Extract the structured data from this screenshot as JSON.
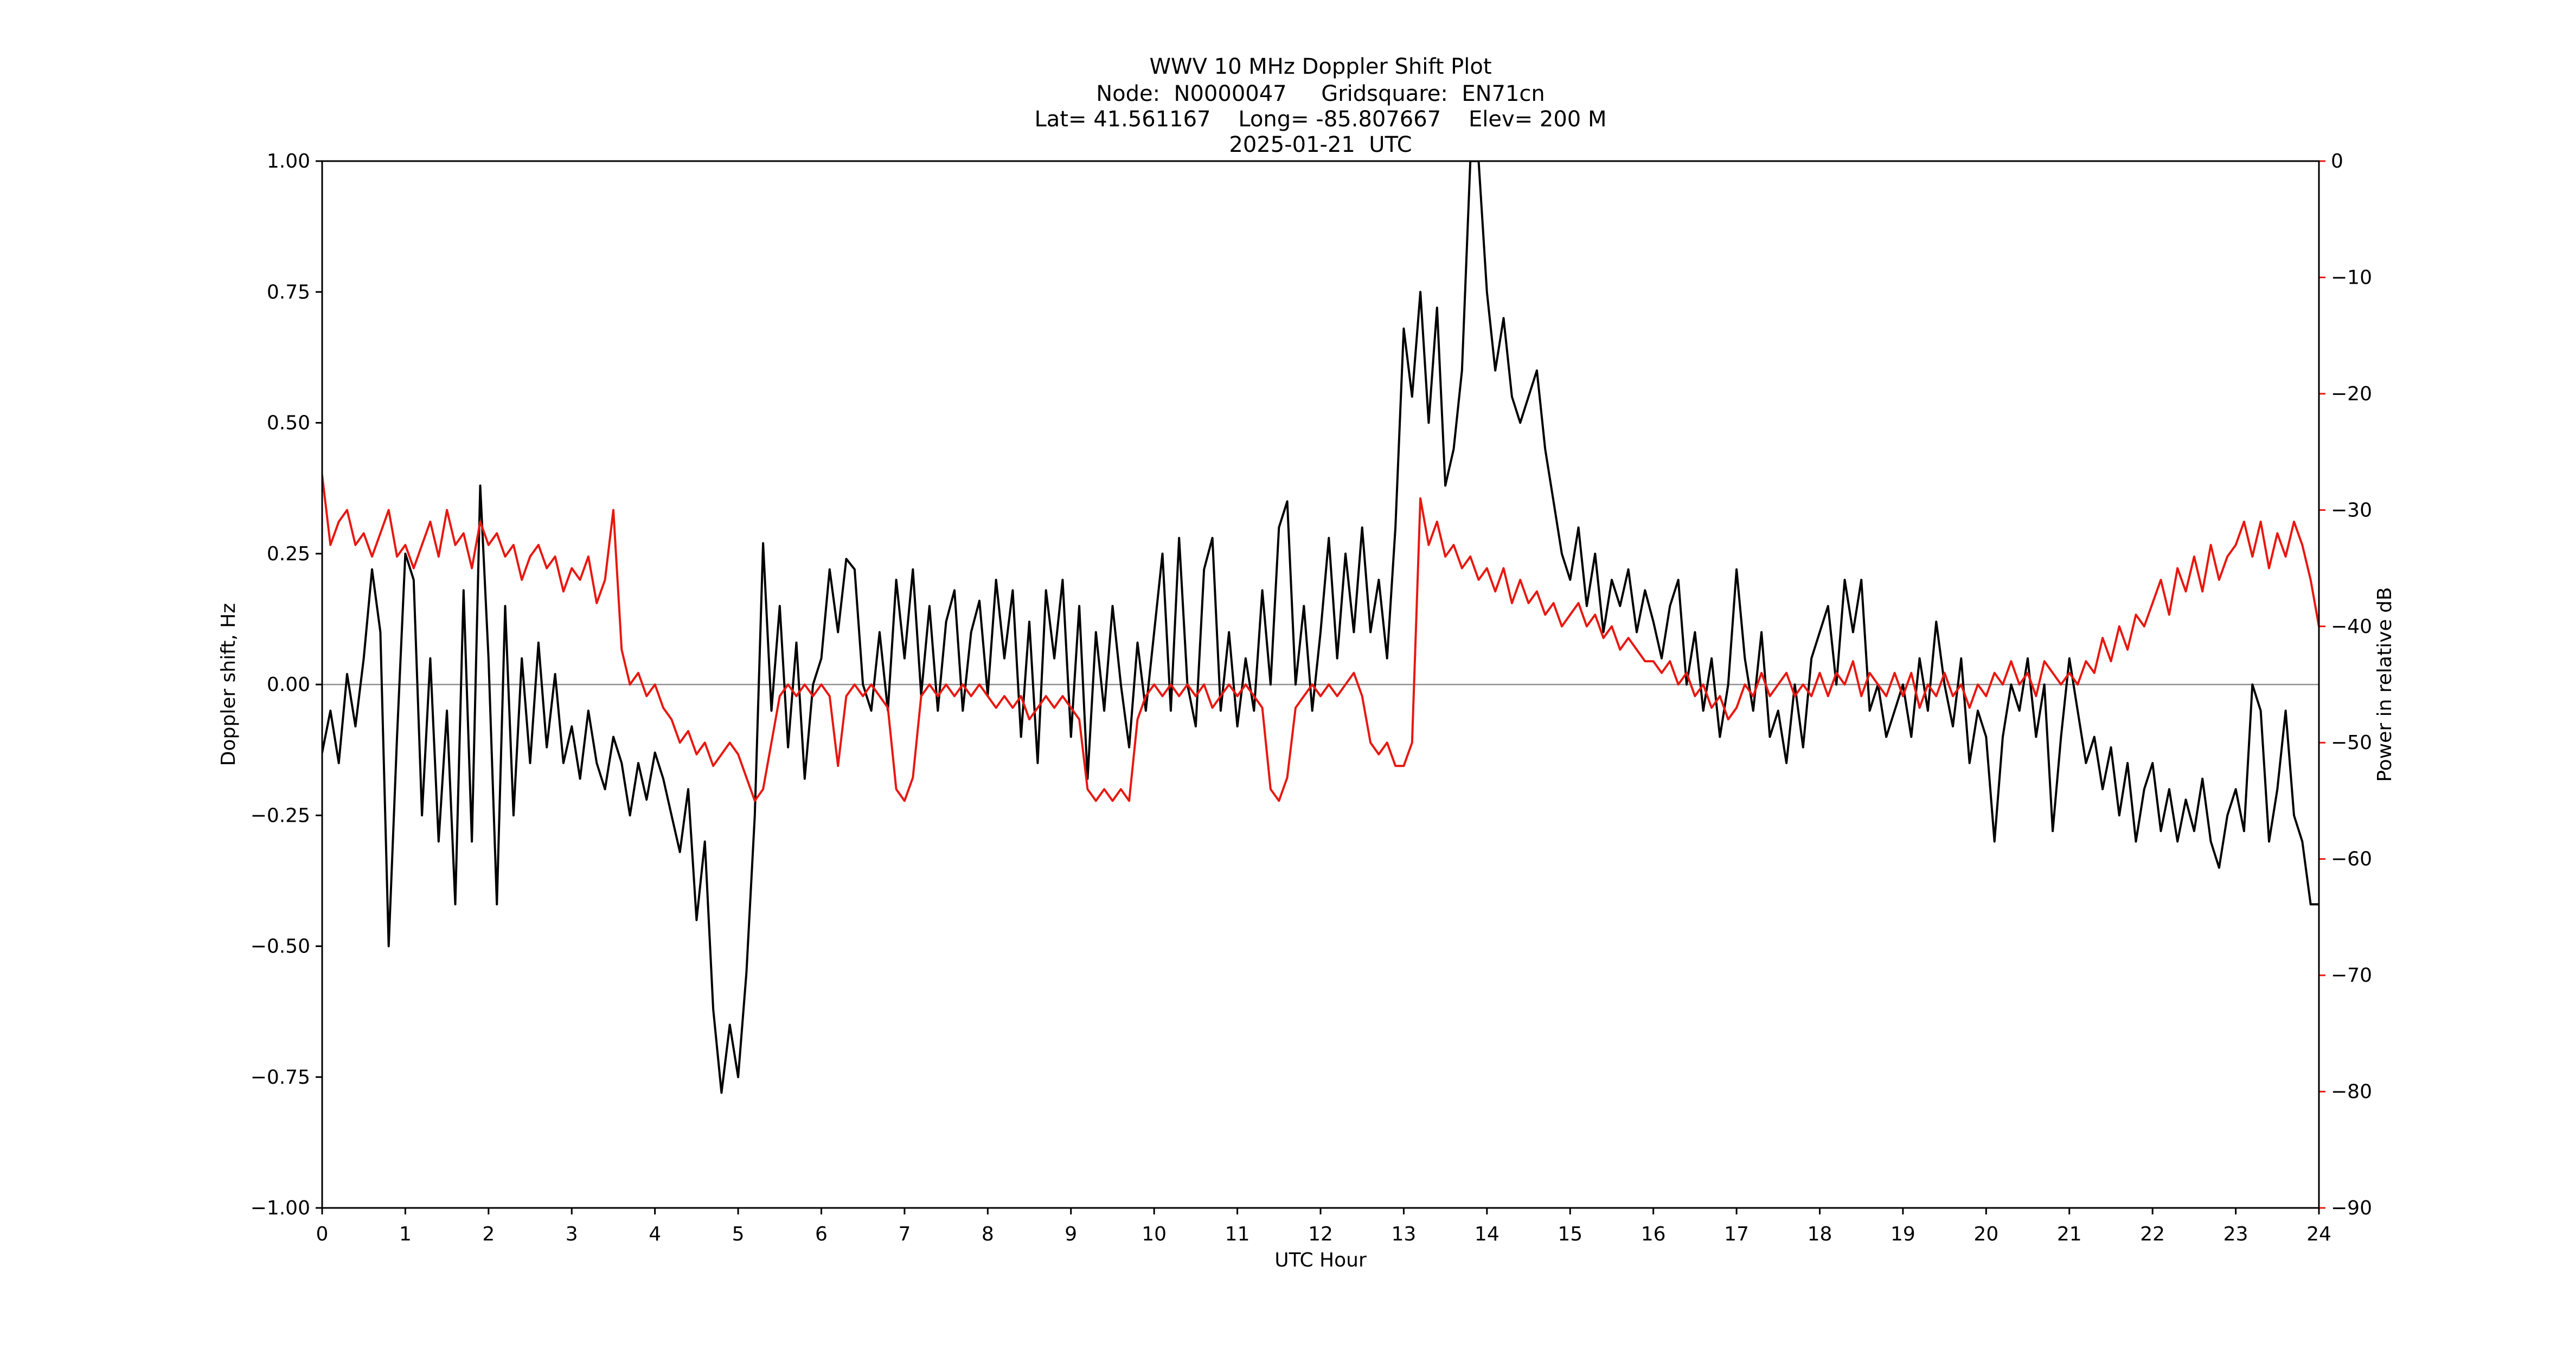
{
  "header": {
    "title": "WWV 10 MHz Doppler Shift Plot",
    "node_line": "Node:  N0000047     Gridsquare:  EN71cn",
    "location_line": "Lat= 41.561167    Long= -85.807667    Elev= 200 M",
    "date_line": "2025-01-21  UTC"
  },
  "colors": {
    "doppler_line": "#000000",
    "power_line": "#e8170f",
    "zero_line": "#909090",
    "axis": "#000000",
    "background": "#ffffff"
  },
  "chart_data": {
    "type": "line",
    "title": "WWV 10 MHz Doppler Shift Plot",
    "xlabel": "UTC Hour",
    "ylabel_left": "Doppler shift, Hz",
    "ylabel_right": "Power in relative dB",
    "xlim": [
      0,
      24
    ],
    "ylim_left": [
      -1.0,
      1.0
    ],
    "ylim_right": [
      -90,
      0
    ],
    "grid": false,
    "legend": "none",
    "zero_reference_line": 0.0,
    "x_ticks": [
      0,
      1,
      2,
      3,
      4,
      5,
      6,
      7,
      8,
      9,
      10,
      11,
      12,
      13,
      14,
      15,
      16,
      17,
      18,
      19,
      20,
      21,
      22,
      23,
      24
    ],
    "x_tick_labels": [
      "0",
      "1",
      "2",
      "3",
      "4",
      "5",
      "6",
      "7",
      "8",
      "9",
      "10",
      "11",
      "12",
      "13",
      "14",
      "15",
      "16",
      "17",
      "18",
      "19",
      "20",
      "21",
      "22",
      "23",
      "24"
    ],
    "y_left_tick_values": [
      -1.0,
      -0.75,
      -0.5,
      -0.25,
      0.0,
      0.25,
      0.5,
      0.75,
      1.0
    ],
    "y_left_tick_labels": [
      "−1.00",
      "−0.75",
      "−0.50",
      "−0.25",
      "0.00",
      "0.25",
      "0.50",
      "0.75",
      "1.00"
    ],
    "y_right_tick_values": [
      -90,
      -80,
      -70,
      -60,
      -50,
      -40,
      -30,
      -20,
      -10,
      0
    ],
    "y_right_tick_labels": [
      "−90",
      "−80",
      "−70",
      "−60",
      "−50",
      "−40",
      "−30",
      "−20",
      "−10",
      "0"
    ],
    "series": [
      {
        "name": "Doppler shift",
        "axis": "left",
        "color": "#000000",
        "x_start": 0,
        "x_step": 0.1,
        "values": [
          -0.13,
          -0.05,
          -0.15,
          0.02,
          -0.08,
          0.05,
          0.22,
          0.1,
          -0.5,
          -0.1,
          0.25,
          0.2,
          -0.25,
          0.05,
          -0.3,
          -0.05,
          -0.42,
          0.18,
          -0.3,
          0.38,
          0.05,
          -0.42,
          0.15,
          -0.25,
          0.05,
          -0.15,
          0.08,
          -0.12,
          0.02,
          -0.15,
          -0.08,
          -0.18,
          -0.05,
          -0.15,
          -0.2,
          -0.1,
          -0.15,
          -0.25,
          -0.15,
          -0.22,
          -0.13,
          -0.18,
          -0.25,
          -0.32,
          -0.2,
          -0.45,
          -0.3,
          -0.62,
          -0.78,
          -0.65,
          -0.75,
          -0.55,
          -0.25,
          0.27,
          -0.05,
          0.15,
          -0.12,
          0.08,
          -0.18,
          0.0,
          0.05,
          0.22,
          0.1,
          0.24,
          0.22,
          0.0,
          -0.05,
          0.1,
          -0.05,
          0.2,
          0.05,
          0.22,
          -0.02,
          0.15,
          -0.05,
          0.12,
          0.18,
          -0.05,
          0.1,
          0.16,
          -0.02,
          0.2,
          0.05,
          0.18,
          -0.1,
          0.12,
          -0.15,
          0.18,
          0.05,
          0.2,
          -0.1,
          0.15,
          -0.18,
          0.1,
          -0.05,
          0.15,
          0.0,
          -0.12,
          0.08,
          -0.05,
          0.1,
          0.25,
          -0.05,
          0.28,
          0.0,
          -0.08,
          0.22,
          0.28,
          -0.05,
          0.1,
          -0.08,
          0.05,
          -0.05,
          0.18,
          0.0,
          0.3,
          0.35,
          0.0,
          0.15,
          -0.05,
          0.1,
          0.28,
          0.05,
          0.25,
          0.1,
          0.3,
          0.1,
          0.2,
          0.05,
          0.3,
          0.68,
          0.55,
          0.75,
          0.5,
          0.72,
          0.38,
          0.45,
          0.6,
          1.0,
          1.0,
          0.75,
          0.6,
          0.7,
          0.55,
          0.5,
          0.55,
          0.6,
          0.45,
          0.35,
          0.25,
          0.2,
          0.3,
          0.15,
          0.25,
          0.1,
          0.2,
          0.15,
          0.22,
          0.1,
          0.18,
          0.12,
          0.05,
          0.15,
          0.2,
          0.0,
          0.1,
          -0.05,
          0.05,
          -0.1,
          0.0,
          0.22,
          0.05,
          -0.05,
          0.1,
          -0.1,
          -0.05,
          -0.15,
          0.0,
          -0.12,
          0.05,
          0.1,
          0.15,
          0.0,
          0.2,
          0.1,
          0.2,
          -0.05,
          0.0,
          -0.1,
          -0.05,
          0.0,
          -0.1,
          0.05,
          -0.05,
          0.12,
          0.0,
          -0.08,
          0.05,
          -0.15,
          -0.05,
          -0.1,
          -0.3,
          -0.1,
          0.0,
          -0.05,
          0.05,
          -0.1,
          0.0,
          -0.28,
          -0.1,
          0.05,
          -0.05,
          -0.15,
          -0.1,
          -0.2,
          -0.12,
          -0.25,
          -0.15,
          -0.3,
          -0.2,
          -0.15,
          -0.28,
          -0.2,
          -0.3,
          -0.22,
          -0.28,
          -0.18,
          -0.3,
          -0.35,
          -0.25,
          -0.2,
          -0.28,
          0.0,
          -0.05,
          -0.3,
          -0.2,
          -0.05,
          -0.25,
          -0.3,
          -0.42,
          -0.42
        ]
      },
      {
        "name": "Power",
        "axis": "right",
        "color": "#e8170f",
        "x_start": 0,
        "x_step": 0.1,
        "values": [
          -27,
          -33,
          -31,
          -30,
          -33,
          -32,
          -34,
          -32,
          -30,
          -34,
          -33,
          -35,
          -33,
          -31,
          -34,
          -30,
          -33,
          -32,
          -35,
          -31,
          -33,
          -32,
          -34,
          -33,
          -36,
          -34,
          -33,
          -35,
          -34,
          -37,
          -35,
          -36,
          -34,
          -38,
          -36,
          -30,
          -42,
          -45,
          -44,
          -46,
          -45,
          -47,
          -48,
          -50,
          -49,
          -51,
          -50,
          -52,
          -51,
          -50,
          -51,
          -53,
          -55,
          -54,
          -50,
          -46,
          -45,
          -46,
          -45,
          -46,
          -45,
          -46,
          -52,
          -46,
          -45,
          -46,
          -45,
          -46,
          -47,
          -54,
          -55,
          -53,
          -46,
          -45,
          -46,
          -45,
          -46,
          -45,
          -46,
          -45,
          -46,
          -47,
          -46,
          -47,
          -46,
          -48,
          -47,
          -46,
          -47,
          -46,
          -47,
          -48,
          -54,
          -55,
          -54,
          -55,
          -54,
          -55,
          -48,
          -46,
          -45,
          -46,
          -45,
          -46,
          -45,
          -46,
          -45,
          -47,
          -46,
          -45,
          -46,
          -45,
          -46,
          -47,
          -54,
          -55,
          -53,
          -47,
          -46,
          -45,
          -46,
          -45,
          -46,
          -45,
          -44,
          -46,
          -50,
          -51,
          -50,
          -52,
          -52,
          -50,
          -29,
          -33,
          -31,
          -34,
          -33,
          -35,
          -34,
          -36,
          -35,
          -37,
          -35,
          -38,
          -36,
          -38,
          -37,
          -39,
          -38,
          -40,
          -39,
          -38,
          -40,
          -39,
          -41,
          -40,
          -42,
          -41,
          -42,
          -43,
          -43,
          -44,
          -43,
          -45,
          -44,
          -46,
          -45,
          -47,
          -46,
          -48,
          -47,
          -45,
          -46,
          -44,
          -46,
          -45,
          -44,
          -46,
          -45,
          -46,
          -44,
          -46,
          -44,
          -45,
          -43,
          -46,
          -44,
          -45,
          -46,
          -44,
          -46,
          -44,
          -47,
          -45,
          -46,
          -44,
          -46,
          -45,
          -47,
          -45,
          -46,
          -44,
          -45,
          -43,
          -45,
          -44,
          -46,
          -43,
          -44,
          -45,
          -44,
          -45,
          -43,
          -44,
          -41,
          -43,
          -40,
          -42,
          -39,
          -40,
          -38,
          -36,
          -39,
          -35,
          -37,
          -34,
          -37,
          -33,
          -36,
          -34,
          -33,
          -31,
          -34,
          -31,
          -35,
          -32,
          -34,
          -31,
          -33,
          -36,
          -40
        ]
      }
    ]
  }
}
